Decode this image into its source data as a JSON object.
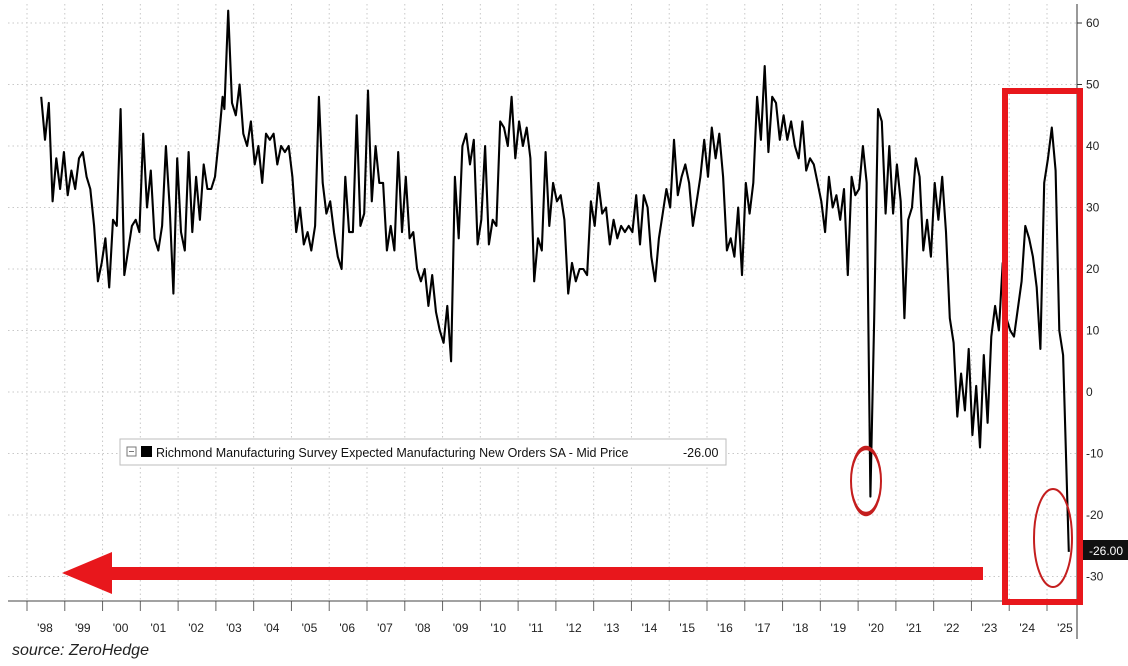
{
  "chart_data": {
    "type": "line",
    "series": [
      {
        "name": "Richmond Manufacturing Survey Expected Manufacturing New Orders SA - Mid Price",
        "last_value_label": "-26.00",
        "color": "#000000",
        "points": [
          [
            1997.9,
            48
          ],
          [
            1998.0,
            41
          ],
          [
            1998.1,
            47
          ],
          [
            1998.2,
            31
          ],
          [
            1998.3,
            38
          ],
          [
            1998.4,
            33
          ],
          [
            1998.5,
            39
          ],
          [
            1998.6,
            32
          ],
          [
            1998.7,
            36
          ],
          [
            1998.8,
            33
          ],
          [
            1998.9,
            38
          ],
          [
            1999.0,
            39
          ],
          [
            1999.1,
            35
          ],
          [
            1999.2,
            33
          ],
          [
            1999.3,
            27
          ],
          [
            1999.4,
            18
          ],
          [
            1999.5,
            21
          ],
          [
            1999.6,
            25
          ],
          [
            1999.7,
            17
          ],
          [
            1999.8,
            28
          ],
          [
            1999.9,
            27
          ],
          [
            2000.0,
            46
          ],
          [
            2000.1,
            19
          ],
          [
            2000.2,
            23
          ],
          [
            2000.3,
            27
          ],
          [
            2000.4,
            28
          ],
          [
            2000.5,
            26
          ],
          [
            2000.6,
            42
          ],
          [
            2000.7,
            30
          ],
          [
            2000.8,
            36
          ],
          [
            2000.9,
            25
          ],
          [
            2001.0,
            23
          ],
          [
            2001.1,
            27
          ],
          [
            2001.2,
            40
          ],
          [
            2001.3,
            30
          ],
          [
            2001.4,
            16
          ],
          [
            2001.5,
            38
          ],
          [
            2001.6,
            26
          ],
          [
            2001.7,
            23
          ],
          [
            2001.8,
            39
          ],
          [
            2001.9,
            26
          ],
          [
            2002.0,
            35
          ],
          [
            2002.1,
            28
          ],
          [
            2002.2,
            37
          ],
          [
            2002.3,
            33
          ],
          [
            2002.4,
            33
          ],
          [
            2002.5,
            35
          ],
          [
            2002.6,
            41
          ],
          [
            2002.7,
            48
          ],
          [
            2002.75,
            46
          ],
          [
            2002.85,
            62
          ],
          [
            2002.95,
            47
          ],
          [
            2003.05,
            45
          ],
          [
            2003.15,
            50
          ],
          [
            2003.25,
            42
          ],
          [
            2003.35,
            40
          ],
          [
            2003.45,
            44
          ],
          [
            2003.55,
            37
          ],
          [
            2003.65,
            40
          ],
          [
            2003.75,
            34
          ],
          [
            2003.85,
            42
          ],
          [
            2003.95,
            41
          ],
          [
            2004.05,
            42
          ],
          [
            2004.15,
            37
          ],
          [
            2004.25,
            40
          ],
          [
            2004.35,
            39
          ],
          [
            2004.45,
            40
          ],
          [
            2004.55,
            35
          ],
          [
            2004.65,
            26
          ],
          [
            2004.75,
            30
          ],
          [
            2004.85,
            24
          ],
          [
            2004.95,
            26
          ],
          [
            2005.05,
            23
          ],
          [
            2005.15,
            27
          ],
          [
            2005.25,
            48
          ],
          [
            2005.35,
            34
          ],
          [
            2005.45,
            29
          ],
          [
            2005.55,
            31
          ],
          [
            2005.65,
            26
          ],
          [
            2005.75,
            22
          ],
          [
            2005.85,
            20
          ],
          [
            2005.95,
            35
          ],
          [
            2006.05,
            26
          ],
          [
            2006.15,
            26
          ],
          [
            2006.25,
            45
          ],
          [
            2006.35,
            27
          ],
          [
            2006.45,
            29
          ],
          [
            2006.55,
            49
          ],
          [
            2006.65,
            31
          ],
          [
            2006.75,
            40
          ],
          [
            2006.85,
            34
          ],
          [
            2006.95,
            34
          ],
          [
            2007.05,
            23
          ],
          [
            2007.15,
            27
          ],
          [
            2007.25,
            23
          ],
          [
            2007.35,
            39
          ],
          [
            2007.45,
            26
          ],
          [
            2007.55,
            35
          ],
          [
            2007.65,
            25
          ],
          [
            2007.75,
            26
          ],
          [
            2007.85,
            20
          ],
          [
            2007.95,
            18
          ],
          [
            2008.05,
            20
          ],
          [
            2008.15,
            14
          ],
          [
            2008.25,
            19
          ],
          [
            2008.35,
            13
          ],
          [
            2008.45,
            10
          ],
          [
            2008.55,
            8
          ],
          [
            2008.65,
            14
          ],
          [
            2008.75,
            5
          ],
          [
            2008.85,
            35
          ],
          [
            2008.95,
            25
          ],
          [
            2009.05,
            40
          ],
          [
            2009.15,
            42
          ],
          [
            2009.25,
            37
          ],
          [
            2009.35,
            41
          ],
          [
            2009.45,
            24
          ],
          [
            2009.55,
            28
          ],
          [
            2009.65,
            40
          ],
          [
            2009.75,
            24
          ],
          [
            2009.85,
            28
          ],
          [
            2009.95,
            27
          ],
          [
            2010.05,
            44
          ],
          [
            2010.15,
            43
          ],
          [
            2010.25,
            40
          ],
          [
            2010.35,
            48
          ],
          [
            2010.45,
            38
          ],
          [
            2010.55,
            44
          ],
          [
            2010.65,
            40
          ],
          [
            2010.75,
            43
          ],
          [
            2010.85,
            38
          ],
          [
            2010.95,
            18
          ],
          [
            2011.05,
            25
          ],
          [
            2011.15,
            23
          ],
          [
            2011.25,
            39
          ],
          [
            2011.35,
            27
          ],
          [
            2011.45,
            34
          ],
          [
            2011.55,
            31
          ],
          [
            2011.65,
            32
          ],
          [
            2011.75,
            28
          ],
          [
            2011.85,
            16
          ],
          [
            2011.95,
            21
          ],
          [
            2012.05,
            18
          ],
          [
            2012.15,
            20
          ],
          [
            2012.25,
            20
          ],
          [
            2012.35,
            19
          ],
          [
            2012.45,
            31
          ],
          [
            2012.55,
            27
          ],
          [
            2012.65,
            34
          ],
          [
            2012.75,
            29
          ],
          [
            2012.85,
            30
          ],
          [
            2012.95,
            24
          ],
          [
            2013.05,
            28
          ],
          [
            2013.15,
            25
          ],
          [
            2013.25,
            27
          ],
          [
            2013.35,
            26
          ],
          [
            2013.45,
            27
          ],
          [
            2013.55,
            26
          ],
          [
            2013.65,
            32
          ],
          [
            2013.75,
            24
          ],
          [
            2013.85,
            32
          ],
          [
            2013.95,
            30
          ],
          [
            2014.05,
            22
          ],
          [
            2014.15,
            18
          ],
          [
            2014.25,
            25
          ],
          [
            2014.35,
            29
          ],
          [
            2014.45,
            33
          ],
          [
            2014.55,
            30
          ],
          [
            2014.65,
            41
          ],
          [
            2014.75,
            32
          ],
          [
            2014.85,
            35
          ],
          [
            2014.95,
            37
          ],
          [
            2015.05,
            34
          ],
          [
            2015.15,
            27
          ],
          [
            2015.25,
            31
          ],
          [
            2015.35,
            35
          ],
          [
            2015.45,
            41
          ],
          [
            2015.55,
            35
          ],
          [
            2015.65,
            43
          ],
          [
            2015.75,
            38
          ],
          [
            2015.85,
            42
          ],
          [
            2015.95,
            35
          ],
          [
            2016.05,
            23
          ],
          [
            2016.15,
            25
          ],
          [
            2016.25,
            22
          ],
          [
            2016.35,
            30
          ],
          [
            2016.45,
            19
          ],
          [
            2016.55,
            34
          ],
          [
            2016.65,
            29
          ],
          [
            2016.75,
            34
          ],
          [
            2016.85,
            48
          ],
          [
            2016.95,
            41
          ],
          [
            2017.05,
            53
          ],
          [
            2017.15,
            39
          ],
          [
            2017.25,
            48
          ],
          [
            2017.35,
            47
          ],
          [
            2017.45,
            41
          ],
          [
            2017.55,
            45
          ],
          [
            2017.65,
            41
          ],
          [
            2017.75,
            44
          ],
          [
            2017.85,
            40
          ],
          [
            2017.95,
            38
          ],
          [
            2018.05,
            44
          ],
          [
            2018.15,
            36
          ],
          [
            2018.25,
            38
          ],
          [
            2018.35,
            37
          ],
          [
            2018.45,
            34
          ],
          [
            2018.55,
            31
          ],
          [
            2018.65,
            26
          ],
          [
            2018.75,
            35
          ],
          [
            2018.85,
            30
          ],
          [
            2018.95,
            32
          ],
          [
            2019.05,
            28
          ],
          [
            2019.15,
            33
          ],
          [
            2019.25,
            19
          ],
          [
            2019.35,
            35
          ],
          [
            2019.45,
            32
          ],
          [
            2019.55,
            33
          ],
          [
            2019.65,
            40
          ],
          [
            2019.75,
            34
          ],
          [
            2019.85,
            -17
          ],
          [
            2019.95,
            12
          ],
          [
            2020.05,
            46
          ],
          [
            2020.15,
            44
          ],
          [
            2020.25,
            29
          ],
          [
            2020.35,
            40
          ],
          [
            2020.45,
            29
          ],
          [
            2020.55,
            37
          ],
          [
            2020.65,
            31
          ],
          [
            2020.75,
            12
          ],
          [
            2020.85,
            28
          ],
          [
            2020.95,
            30
          ],
          [
            2021.05,
            38
          ],
          [
            2021.15,
            35
          ],
          [
            2021.25,
            23
          ],
          [
            2021.35,
            28
          ],
          [
            2021.45,
            22
          ],
          [
            2021.55,
            34
          ],
          [
            2021.65,
            28
          ],
          [
            2021.75,
            35
          ],
          [
            2021.85,
            26
          ],
          [
            2021.95,
            12
          ],
          [
            2022.05,
            8
          ],
          [
            2022.15,
            -4
          ],
          [
            2022.25,
            3
          ],
          [
            2022.35,
            -3
          ],
          [
            2022.45,
            7
          ],
          [
            2022.55,
            -7
          ],
          [
            2022.65,
            1
          ],
          [
            2022.75,
            -9
          ],
          [
            2022.85,
            6
          ],
          [
            2022.95,
            -5
          ],
          [
            2023.05,
            9
          ],
          [
            2023.15,
            14
          ],
          [
            2023.25,
            10
          ],
          [
            2023.35,
            21
          ],
          [
            2023.45,
            12
          ],
          [
            2023.55,
            10
          ],
          [
            2023.65,
            9
          ],
          [
            2023.85,
            18
          ],
          [
            2023.95,
            27
          ],
          [
            2024.05,
            25
          ],
          [
            2024.15,
            22
          ],
          [
            2024.25,
            17
          ],
          [
            2024.35,
            7
          ],
          [
            2024.45,
            34
          ],
          [
            2024.55,
            38
          ],
          [
            2024.65,
            43
          ],
          [
            2024.75,
            36
          ],
          [
            2024.85,
            10
          ],
          [
            2024.95,
            6
          ],
          [
            2025.1,
            -26
          ]
        ]
      }
    ],
    "x_ticks": [
      "'98",
      "'99",
      "'00",
      "'01",
      "'02",
      "'03",
      "'04",
      "'05",
      "'06",
      "'07",
      "'08",
      "'09",
      "'10",
      "'11",
      "'12",
      "'13",
      "'14",
      "'15",
      "'16",
      "'17",
      "'18",
      "'19",
      "'20",
      "'21",
      "'22",
      "'23",
      "'24",
      "'25"
    ],
    "y_ticks": [
      "60",
      "50",
      "40",
      "30",
      "20",
      "10",
      "0",
      "-10",
      "-20",
      "-30"
    ],
    "xlim": [
      1997.85,
      2025.7
    ],
    "ylim": [
      -34,
      64
    ],
    "grid": true,
    "legend_position": "lower-left",
    "highlight_color": "#e8171c",
    "annotation_circle_color": "#c41e1e"
  },
  "source": "source: ZeroHedge"
}
